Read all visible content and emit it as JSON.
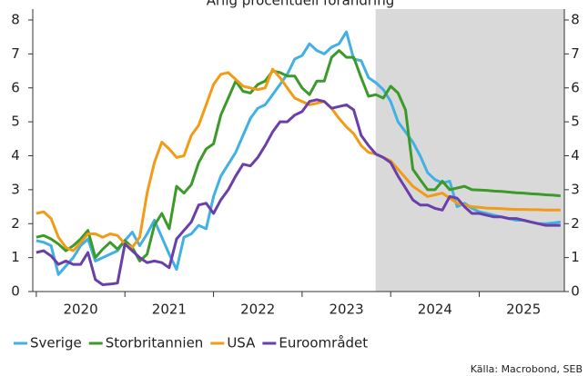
{
  "chart_data": {
    "type": "line",
    "title": "Årlig procentuell förändring",
    "source": "Källa: Macrobond, SEB",
    "x": [
      2020,
      2020.083,
      2020.167,
      2020.25,
      2020.333,
      2020.417,
      2020.5,
      2020.583,
      2020.667,
      2020.75,
      2020.833,
      2020.917,
      2021,
      2021.083,
      2021.167,
      2021.25,
      2021.333,
      2021.417,
      2021.5,
      2021.583,
      2021.667,
      2021.75,
      2021.833,
      2021.917,
      2022,
      2022.083,
      2022.167,
      2022.25,
      2022.333,
      2022.417,
      2022.5,
      2022.583,
      2022.667,
      2022.75,
      2022.833,
      2022.917,
      2023,
      2023.083,
      2023.167,
      2023.25,
      2023.333,
      2023.417,
      2023.5,
      2023.583,
      2023.667,
      2023.75,
      2023.833,
      2023.917,
      2024,
      2024.083,
      2024.167,
      2024.25,
      2024.333,
      2024.417,
      2024.5,
      2024.583,
      2024.667,
      2024.75,
      2024.833,
      2024.917,
      2025,
      2025.083,
      2025.167,
      2025.25,
      2025.333,
      2025.417,
      2025.5,
      2025.583,
      2025.667,
      2025.75,
      2025.833,
      2025.917
    ],
    "series": [
      {
        "name": "Sverige",
        "color": "#41b0e4",
        "values": [
          1.5,
          1.45,
          1.35,
          0.5,
          0.75,
          1.0,
          1.35,
          1.55,
          0.9,
          1.0,
          1.1,
          1.2,
          1.5,
          1.75,
          1.35,
          1.7,
          2.1,
          1.6,
          1.1,
          0.65,
          1.6,
          1.7,
          1.95,
          1.85,
          2.8,
          3.4,
          3.75,
          4.1,
          4.6,
          5.1,
          5.4,
          5.5,
          5.8,
          6.1,
          6.4,
          6.85,
          6.95,
          7.3,
          7.1,
          7.0,
          7.2,
          7.3,
          7.65,
          6.85,
          6.8,
          6.3,
          6.15,
          5.95,
          5.6,
          5.0,
          4.7,
          4.4,
          4.0,
          3.5,
          3.3,
          3.2,
          3.25,
          2.5,
          2.6,
          2.45,
          2.35,
          2.3,
          2.25,
          2.2,
          2.15,
          2.1,
          2.1,
          2.05,
          2.0,
          2.0,
          2.02,
          2.05
        ]
      },
      {
        "name": "Storbritannien",
        "color": "#3c9a2a",
        "values": [
          1.6,
          1.65,
          1.55,
          1.4,
          1.2,
          1.35,
          1.55,
          1.8,
          1.0,
          1.25,
          1.45,
          1.25,
          1.5,
          1.3,
          0.9,
          1.1,
          1.95,
          2.3,
          1.85,
          3.1,
          2.9,
          3.15,
          3.8,
          4.2,
          4.35,
          5.2,
          5.7,
          6.2,
          5.9,
          5.85,
          6.1,
          6.2,
          6.5,
          6.45,
          6.35,
          6.35,
          6.0,
          5.8,
          6.2,
          6.2,
          6.9,
          7.1,
          6.9,
          6.9,
          6.3,
          5.75,
          5.8,
          5.7,
          6.05,
          5.85,
          5.35,
          3.6,
          3.3,
          3.0,
          3.0,
          3.25,
          3.0,
          3.05,
          3.1,
          3.0,
          2.99,
          2.98,
          2.96,
          2.95,
          2.93,
          2.91,
          2.9,
          2.88,
          2.87,
          2.85,
          2.84,
          2.82
        ]
      },
      {
        "name": "USA",
        "color": "#f29b16",
        "values": [
          2.3,
          2.35,
          2.15,
          1.6,
          1.3,
          1.2,
          1.45,
          1.7,
          1.7,
          1.6,
          1.7,
          1.65,
          1.4,
          1.3,
          1.6,
          2.9,
          3.8,
          4.4,
          4.2,
          3.95,
          4.0,
          4.6,
          4.9,
          5.5,
          6.1,
          6.4,
          6.45,
          6.25,
          6.05,
          6.0,
          5.95,
          6.0,
          6.55,
          6.3,
          6.0,
          5.7,
          5.6,
          5.5,
          5.55,
          5.6,
          5.4,
          5.1,
          4.85,
          4.65,
          4.3,
          4.1,
          4.05,
          3.95,
          3.85,
          3.6,
          3.35,
          3.1,
          2.95,
          2.8,
          2.85,
          2.9,
          2.75,
          2.6,
          2.55,
          2.5,
          2.48,
          2.46,
          2.45,
          2.44,
          2.43,
          2.42,
          2.42,
          2.41,
          2.41,
          2.4,
          2.4,
          2.4
        ]
      },
      {
        "name": "Euroområdet",
        "color": "#6a3fa8",
        "values": [
          1.15,
          1.2,
          1.05,
          0.8,
          0.9,
          0.8,
          0.8,
          1.15,
          0.35,
          0.2,
          0.22,
          0.25,
          1.4,
          1.2,
          1.0,
          0.85,
          0.9,
          0.85,
          0.7,
          1.55,
          1.8,
          2.05,
          2.55,
          2.6,
          2.3,
          2.7,
          3.0,
          3.4,
          3.75,
          3.7,
          3.95,
          4.3,
          4.7,
          5.0,
          5.0,
          5.2,
          5.3,
          5.6,
          5.65,
          5.6,
          5.4,
          5.45,
          5.5,
          5.35,
          4.6,
          4.3,
          4.05,
          3.95,
          3.8,
          3.4,
          3.05,
          2.7,
          2.55,
          2.55,
          2.45,
          2.4,
          2.8,
          2.75,
          2.5,
          2.3,
          2.3,
          2.25,
          2.2,
          2.2,
          2.15,
          2.15,
          2.1,
          2.05,
          2.0,
          1.95,
          1.95,
          1.95
        ]
      }
    ],
    "xlim": [
      2019.96,
      2025.96
    ],
    "xticks": [
      2020,
      2021,
      2022,
      2023,
      2024,
      2025
    ],
    "ylim": [
      0,
      8
    ],
    "yticks": [
      0,
      1,
      2,
      3,
      4,
      5,
      6,
      7,
      8
    ],
    "shaded_from": 2023.83,
    "shade_color": "#d9d9d9",
    "legend": "bottom-left"
  }
}
